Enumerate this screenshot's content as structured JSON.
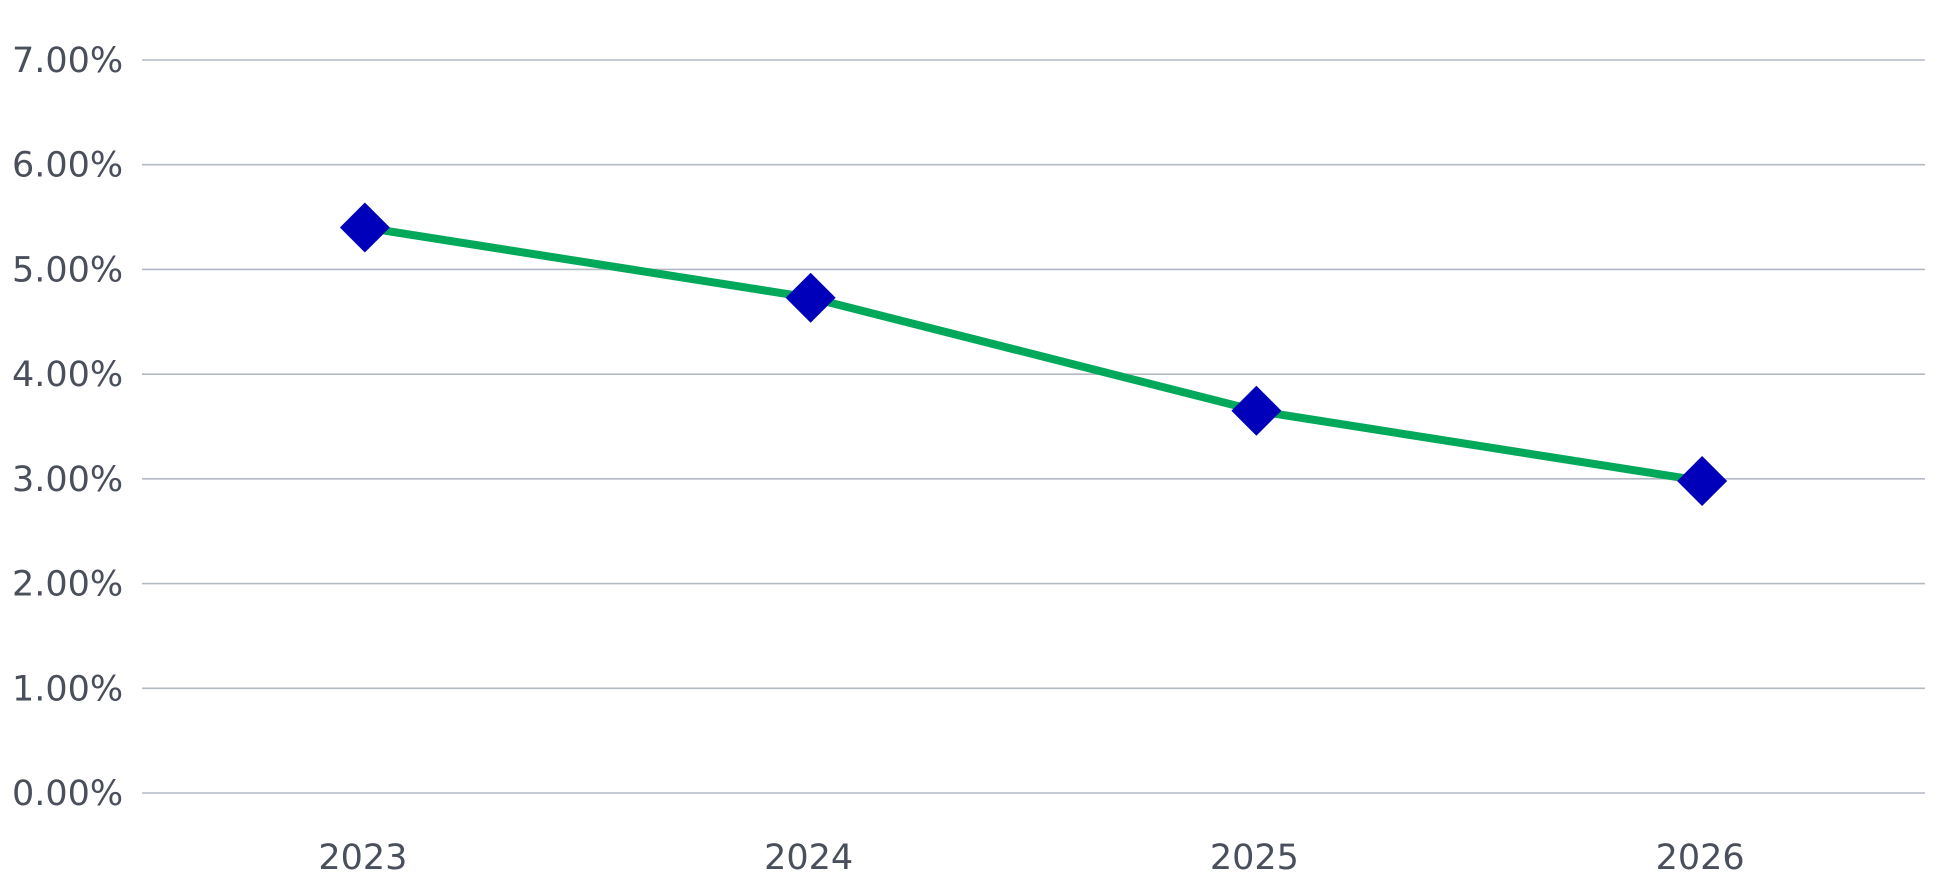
{
  "chart_data": {
    "type": "line",
    "title": "",
    "xlabel": "",
    "ylabel": "",
    "categories": [
      "2023",
      "2024",
      "2025",
      "2026"
    ],
    "series": [
      {
        "values": [
          0.054,
          0.0473,
          0.0365,
          0.0298
        ],
        "line_color": "#00a859",
        "marker": "diamond",
        "marker_color": "#0000bb"
      }
    ],
    "ylim": [
      0,
      0.07
    ],
    "y_ticks": [
      0,
      0.01,
      0.02,
      0.03,
      0.04,
      0.05,
      0.06,
      0.07
    ],
    "y_tick_labels": [
      "0.00%",
      "1.00%",
      "2.00%",
      "3.00%",
      "4.00%",
      "5.00%",
      "6.00%",
      "7.00%"
    ],
    "grid": true,
    "legend": "none"
  }
}
